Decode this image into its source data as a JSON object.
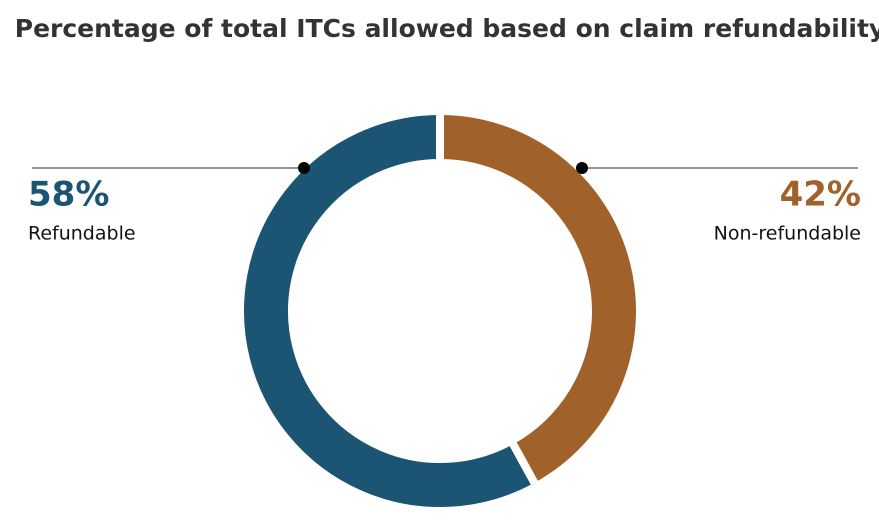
{
  "chart_data": {
    "type": "pie",
    "title": "Percentage of total ITCs allowed based on claim refundability",
    "categories": [
      "Refundable",
      "Non-refundable"
    ],
    "values": [
      58,
      42
    ],
    "value_labels": [
      "58%",
      "42%"
    ],
    "colors": [
      "#1c5573",
      "#a0622a"
    ]
  }
}
